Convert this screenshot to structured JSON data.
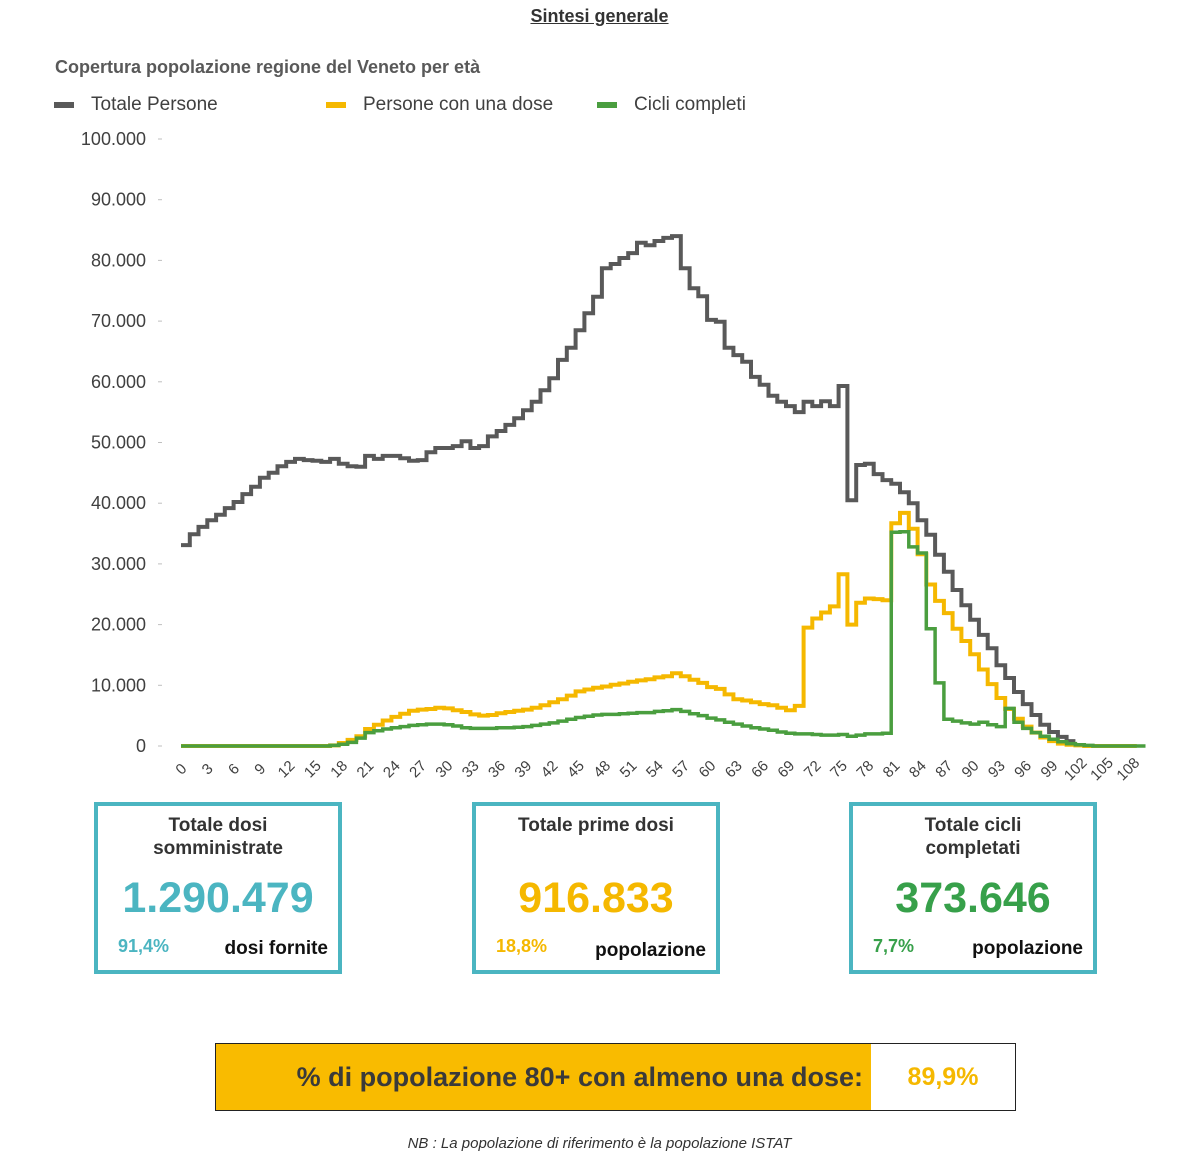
{
  "page": {
    "title": "Sintesi generale",
    "footnote": "NB : La popolazione di riferimento è la popolazione ISTAT"
  },
  "colors": {
    "total": "#595959",
    "one_dose": "#f5b800",
    "complete": "#4a9e3f",
    "box_border": "#4bb5c1",
    "teal": "#4bb5c1",
    "banner_bg": "#f9bb00"
  },
  "chart_data": {
    "type": "line",
    "step": true,
    "title": "Copertura popolazione regione del Veneto per età",
    "xlabel": "",
    "ylabel": "",
    "xlim": [
      0,
      108
    ],
    "ylim": [
      0,
      100000
    ],
    "grid": false,
    "legend_position": "top-left",
    "y_ticks": [
      0,
      10000,
      20000,
      30000,
      40000,
      50000,
      60000,
      70000,
      80000,
      90000,
      100000
    ],
    "y_tick_labels": [
      "0",
      "10.000",
      "20.000",
      "30.000",
      "40.000",
      "50.000",
      "60.000",
      "70.000",
      "80.000",
      "90.000",
      "100.000"
    ],
    "x_ticks": [
      0,
      3,
      6,
      9,
      12,
      15,
      18,
      21,
      24,
      27,
      30,
      33,
      36,
      39,
      42,
      45,
      48,
      51,
      54,
      57,
      60,
      63,
      66,
      69,
      72,
      75,
      78,
      81,
      84,
      87,
      90,
      93,
      96,
      99,
      102,
      105,
      108
    ],
    "x_tick_labels": [
      "0",
      "3",
      "6",
      "9",
      "12",
      "15",
      "18",
      "21",
      "24",
      "27",
      "30",
      "33",
      "36",
      "39",
      "42",
      "45",
      "48",
      "51",
      "54",
      "57",
      "60",
      "63",
      "66",
      "69",
      "72",
      "75",
      "78",
      "81",
      "84",
      "87",
      "90",
      "93",
      "96",
      "99",
      "102",
      "105",
      "108"
    ],
    "series": [
      {
        "name": "Totale Persone",
        "color": "#595959",
        "x_start": 0,
        "values": [
          33100,
          34900,
          36100,
          37200,
          38100,
          39200,
          40200,
          41500,
          42700,
          44200,
          45000,
          46100,
          46800,
          47300,
          47100,
          47000,
          46800,
          47300,
          46500,
          46100,
          46000,
          47800,
          47300,
          47800,
          47800,
          47400,
          47000,
          47100,
          48400,
          49100,
          49100,
          49400,
          50200,
          49100,
          49400,
          51000,
          51900,
          52900,
          54000,
          55300,
          56700,
          58600,
          60600,
          63600,
          65600,
          68500,
          71300,
          74000,
          78700,
          79400,
          80400,
          81200,
          82900,
          82500,
          83200,
          83700,
          84000,
          78700,
          75400,
          74100,
          70200,
          69900,
          65600,
          64400,
          63300,
          60800,
          59500,
          57700,
          56700,
          56000,
          55000,
          56700,
          56000,
          56800,
          56000,
          59300,
          40500,
          46300,
          46500,
          44800,
          43800,
          43200,
          41800,
          40000,
          37200,
          34800,
          31500,
          28700,
          25700,
          23200,
          20800,
          18300,
          16100,
          13300,
          11200,
          8900,
          6900,
          5100,
          3500,
          2300,
          1500,
          800
        ]
      },
      {
        "name": "Persone con una dose",
        "color": "#f5b800",
        "x_start": 0,
        "values": [
          0,
          0,
          0,
          0,
          0,
          0,
          0,
          0,
          0,
          0,
          0,
          0,
          0,
          0,
          0,
          0,
          0,
          100,
          500,
          1000,
          1600,
          2800,
          3500,
          4200,
          4800,
          5300,
          5800,
          6000,
          6100,
          6300,
          6200,
          5900,
          5600,
          5200,
          5000,
          5100,
          5400,
          5600,
          5800,
          6000,
          6300,
          6700,
          7200,
          7700,
          8300,
          9000,
          9300,
          9600,
          9800,
          10100,
          10300,
          10600,
          10800,
          11000,
          11300,
          11500,
          12000,
          11500,
          10900,
          10400,
          9700,
          9400,
          8500,
          7700,
          7500,
          7200,
          6900,
          6700,
          6300,
          5900,
          6600,
          19500,
          21000,
          22000,
          23000,
          28300,
          20000,
          23600,
          24300,
          24200,
          24000,
          36700,
          38400,
          35800,
          31600,
          26600,
          23900,
          21900,
          19300,
          17300,
          15100,
          12600,
          10200,
          7900,
          6100,
          4500,
          3200,
          2200,
          1400,
          800,
          400,
          200,
          100,
          0,
          0,
          0,
          0,
          0,
          0
        ]
      },
      {
        "name": "Cicli completi",
        "color": "#4a9e3f",
        "x_start": 0,
        "values": [
          0,
          0,
          0,
          0,
          0,
          0,
          0,
          0,
          0,
          0,
          0,
          0,
          0,
          0,
          0,
          0,
          0,
          100,
          300,
          600,
          1300,
          2200,
          2500,
          2800,
          3000,
          3200,
          3400,
          3500,
          3600,
          3600,
          3500,
          3300,
          3000,
          2900,
          2900,
          2900,
          3000,
          3000,
          3100,
          3200,
          3400,
          3600,
          3800,
          4100,
          4400,
          4700,
          4900,
          5100,
          5200,
          5200,
          5300,
          5400,
          5500,
          5500,
          5700,
          5800,
          6000,
          5700,
          5300,
          5000,
          4600,
          4300,
          3900,
          3600,
          3300,
          3000,
          2800,
          2600,
          2300,
          2100,
          2000,
          2000,
          1900,
          1800,
          1800,
          1900,
          1600,
          1800,
          2000,
          2000,
          2100,
          35200,
          35300,
          32800,
          31800,
          19300,
          10400,
          4400,
          4100,
          3800,
          3600,
          3900,
          3500,
          3200,
          6200,
          3900,
          2900,
          2200,
          1600,
          1100,
          700,
          400,
          200,
          100,
          0,
          0,
          0,
          0,
          0,
          0
        ]
      }
    ]
  },
  "stats": [
    {
      "title": "Totale dosi somministrate",
      "value": "1.290.479",
      "pct": "91,4%",
      "caption": "dosi fornite",
      "color": "#4bb5c1"
    },
    {
      "title": "Totale prime dosi",
      "value": "916.833",
      "pct": "18,8%",
      "caption": "popolazione",
      "color": "#f5b800"
    },
    {
      "title": "Totale cicli completati",
      "value": "373.646",
      "pct": "7,7%",
      "caption": "popolazione",
      "color": "#37a04a"
    }
  ],
  "banner": {
    "label": "% di popolazione 80+ con almeno una dose:",
    "value": "89,9%"
  }
}
